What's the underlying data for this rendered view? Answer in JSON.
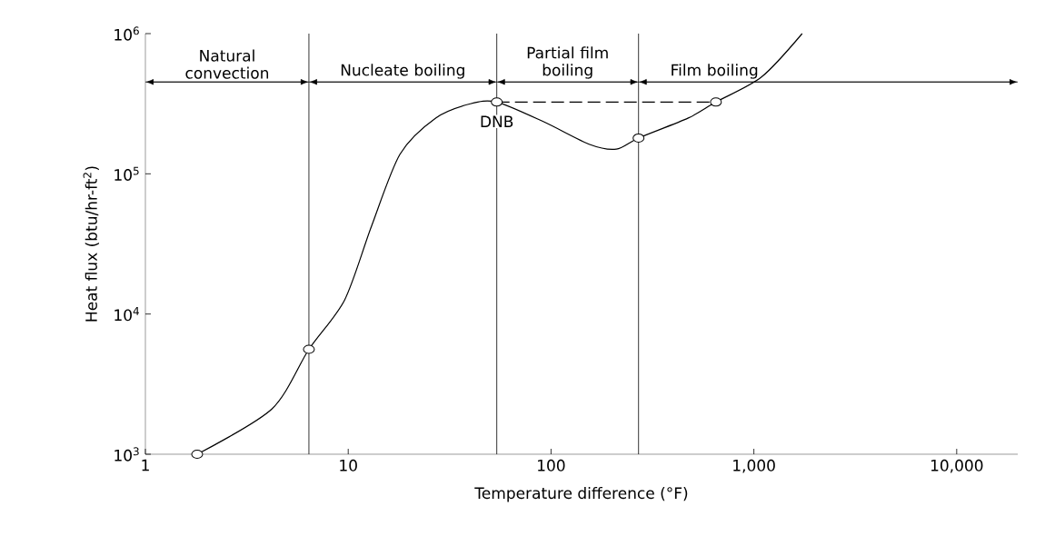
{
  "chart_data": {
    "type": "line",
    "xlabel": "Temperature difference (°F)",
    "ylabel": "Heat flux (btu/hr-ft$^{2}$)",
    "log": "xy",
    "xlim": [
      1,
      20000
    ],
    "ylim": [
      1000,
      1000000
    ],
    "xticks": [
      1,
      10,
      100,
      {
        "value": 1000,
        "label": "1,000"
      },
      {
        "value": 10000,
        "label": "10,000"
      }
    ],
    "yticks": [
      {
        "value": 1000,
        "label": "10$^{3}$"
      },
      {
        "value": 10000,
        "label": "10$^{4}$"
      },
      {
        "value": 100000,
        "label": "10$^{5}$"
      },
      {
        "value": 1000000,
        "label": "10$^{6}$"
      }
    ],
    "grid": false,
    "series": [
      {
        "color": "#000000",
        "line_style": "solid",
        "x": [
          1.8,
          4.2,
          6.4,
          9.6,
          13,
          18,
          27,
          40,
          54,
          92,
          155,
          210,
          270,
          475,
          650,
          1090,
          1730
        ],
        "values": [
          1000,
          2100,
          5600,
          12600,
          42000,
          138000,
          250000,
          316000,
          325000,
          235000,
          162000,
          150000,
          180000,
          250000,
          325000,
          490000,
          1000000
        ]
      },
      {
        "type": "line",
        "color": "#000000",
        "line_style": "dashed",
        "x": [
          54,
          650
        ],
        "values": [
          325000,
          325000
        ]
      },
      {
        "type": "scatter",
        "color": "#000000",
        "marker": "circle",
        "x": [
          1.8,
          6.4,
          54,
          270,
          650
        ],
        "values": [
          1000,
          5600,
          325000,
          180000,
          325000
        ]
      }
    ],
    "ref_lines": [
      {
        "axis": "x",
        "value": 6.4
      },
      {
        "axis": "x",
        "value": 54
      },
      {
        "axis": "x",
        "value": 270
      }
    ],
    "annotations": [
      "Natural convection",
      "Nucleate boiling",
      "Partial film boiling",
      "Film boiling",
      {
        "text": "DNB",
        "x": 54,
        "y": 325000
      }
    ]
  }
}
